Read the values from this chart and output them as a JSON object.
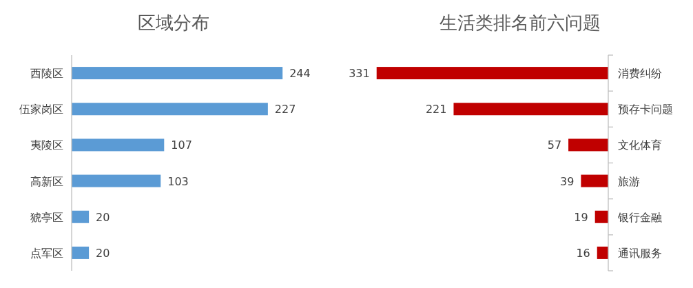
{
  "chart_data": [
    {
      "type": "bar",
      "orientation": "horizontal",
      "title": "区域分布",
      "categories": [
        "西陵区",
        "伍家岗区",
        "夷陵区",
        "高新区",
        "猇亭区",
        "点军区"
      ],
      "values": [
        244,
        227,
        107,
        103,
        20,
        20
      ],
      "color": "#5b9bd5",
      "data_labels": true,
      "tick_labels": "y"
    },
    {
      "type": "bar",
      "orientation": "horizontal",
      "title": "生活类排名前六问题",
      "categories": [
        "消费纠纷",
        "预存卡问题",
        "文化体育",
        "旅游",
        "银行金融",
        "通讯服务"
      ],
      "values": [
        331,
        221,
        57,
        39,
        19,
        16
      ],
      "color": "#c00000",
      "data_labels": true,
      "tick_labels": "y"
    }
  ]
}
